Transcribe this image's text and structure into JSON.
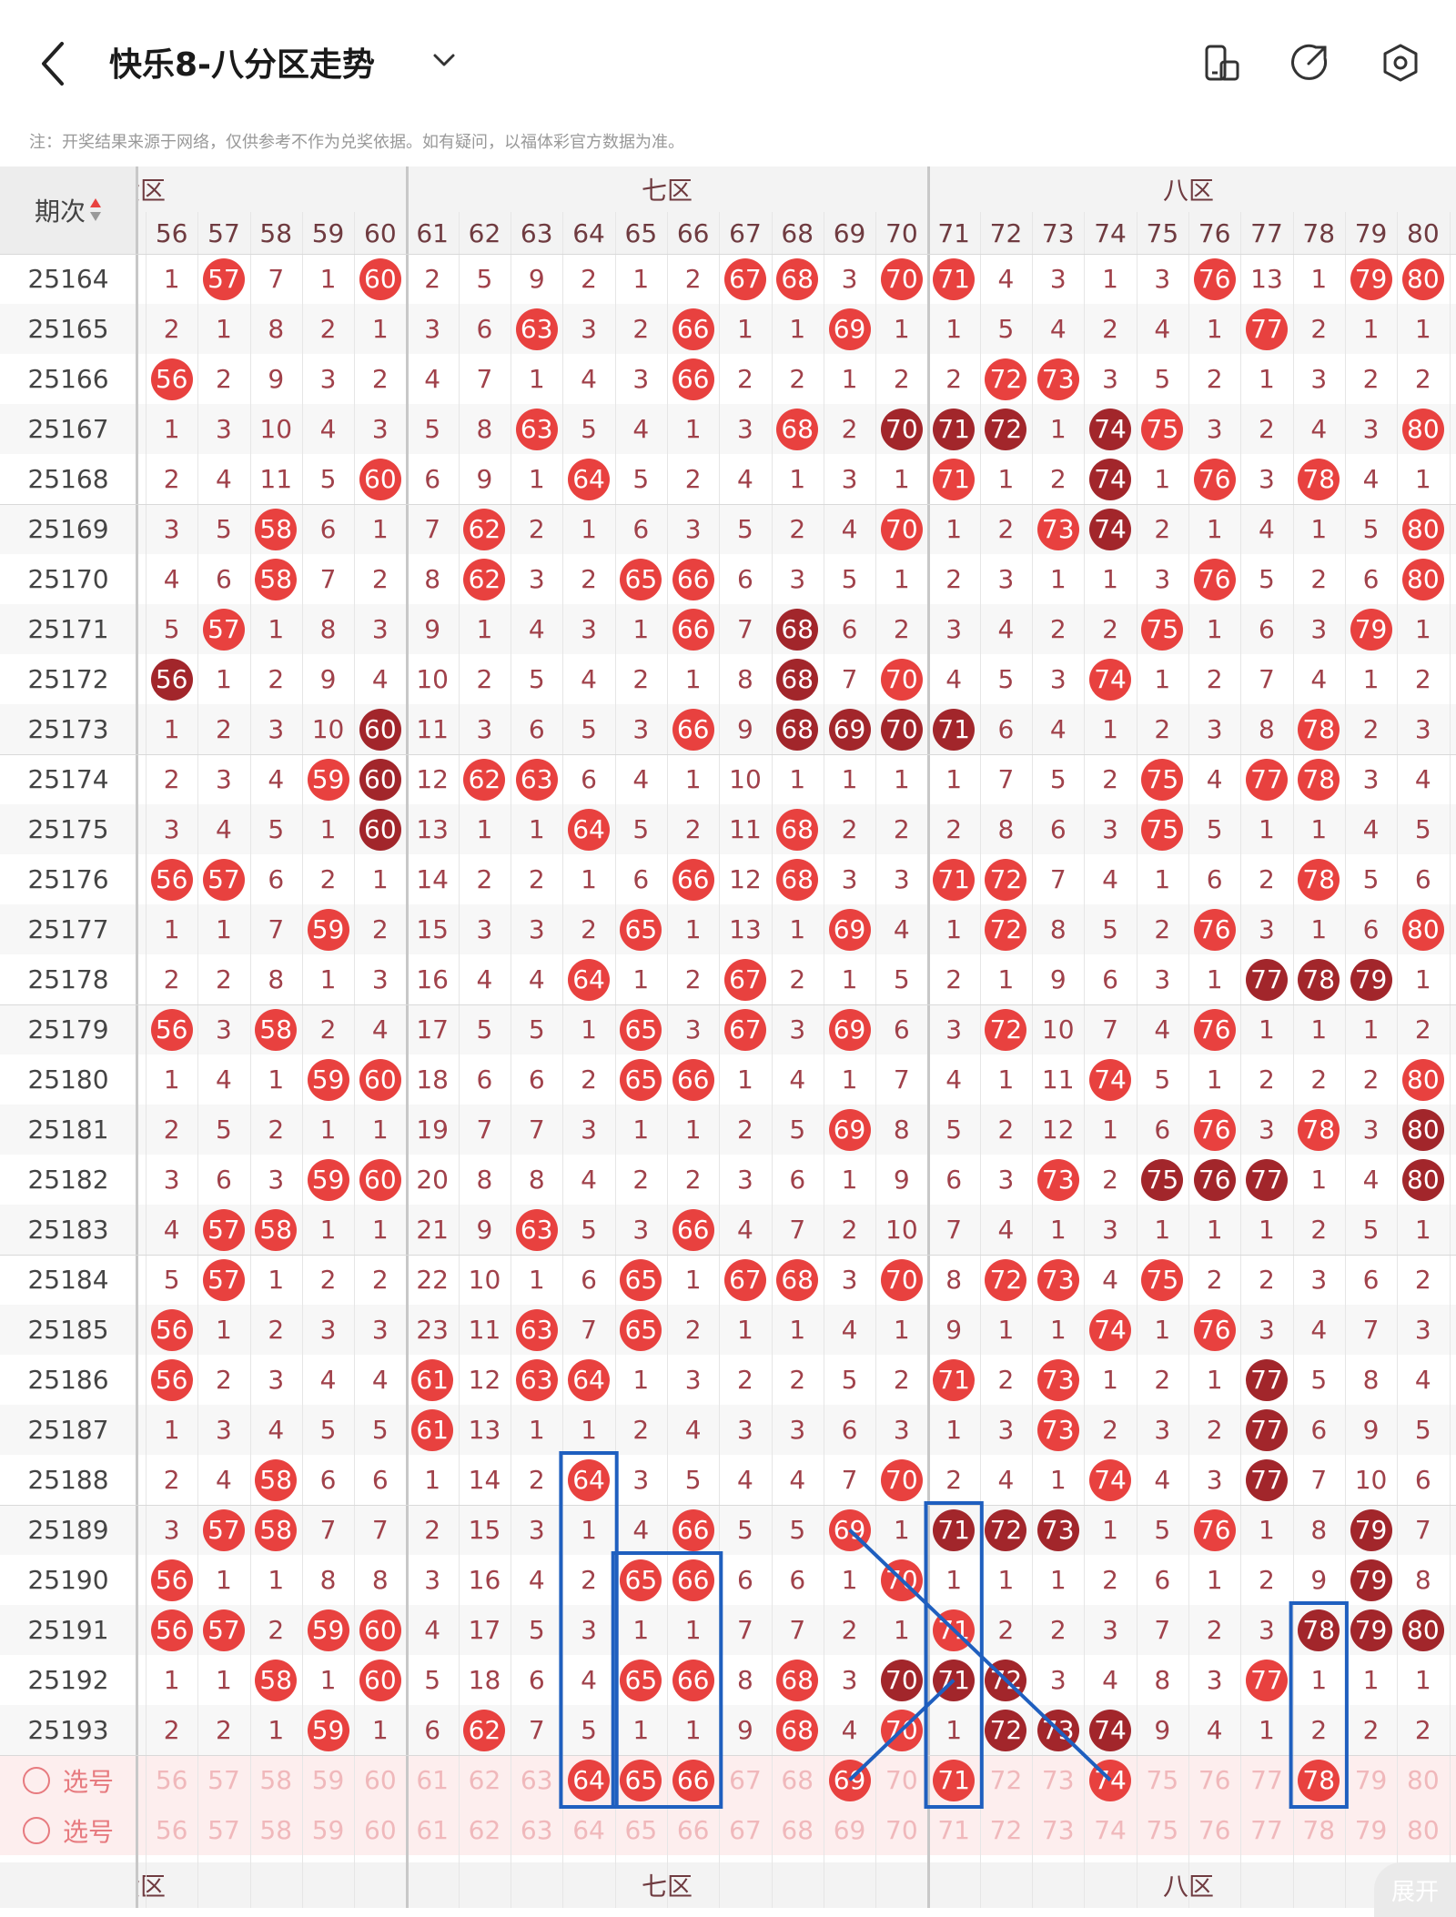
{
  "header": {
    "title": "快乐8-八分区走势",
    "notice": "注：开奖结果来源于网络，仅供参考不作为兑奖依据。如有疑问，以福体彩官方数据为准。"
  },
  "table": {
    "issue_header": "期次",
    "zones": [
      {
        "label": "六区",
        "from": 56,
        "to": 60,
        "partial": true
      },
      {
        "label": "七区",
        "from": 61,
        "to": 70
      },
      {
        "label": "八区",
        "from": 71,
        "to": 80
      }
    ],
    "columns": [
      56,
      57,
      58,
      59,
      60,
      61,
      62,
      63,
      64,
      65,
      66,
      67,
      68,
      69,
      70,
      71,
      72,
      73,
      74,
      75,
      76,
      77,
      78,
      79,
      80
    ],
    "rows": [
      {
        "issue": "25164",
        "cells": [
          1,
          57,
          7,
          1,
          60,
          2,
          5,
          9,
          2,
          1,
          2,
          67,
          68,
          3,
          70,
          71,
          4,
          3,
          1,
          3,
          76,
          13,
          1,
          79,
          80
        ],
        "dark": []
      },
      {
        "issue": "25165",
        "cells": [
          2,
          1,
          8,
          2,
          1,
          3,
          6,
          63,
          3,
          2,
          66,
          1,
          1,
          69,
          1,
          1,
          5,
          4,
          2,
          4,
          1,
          77,
          2,
          1,
          1
        ],
        "dark": []
      },
      {
        "issue": "25166",
        "cells": [
          56,
          2,
          9,
          3,
          2,
          4,
          7,
          1,
          4,
          3,
          66,
          2,
          2,
          1,
          2,
          2,
          72,
          73,
          3,
          5,
          2,
          1,
          3,
          2,
          2
        ],
        "dark": []
      },
      {
        "issue": "25167",
        "cells": [
          1,
          3,
          10,
          4,
          3,
          5,
          8,
          63,
          5,
          4,
          1,
          3,
          68,
          2,
          70,
          71,
          72,
          1,
          74,
          75,
          3,
          2,
          4,
          3,
          80
        ],
        "dark": [
          70,
          71,
          72,
          74
        ]
      },
      {
        "issue": "25168",
        "cells": [
          2,
          4,
          11,
          5,
          60,
          6,
          9,
          1,
          64,
          5,
          2,
          4,
          1,
          3,
          1,
          71,
          1,
          2,
          74,
          1,
          76,
          3,
          78,
          4,
          1
        ],
        "dark": [
          74
        ]
      },
      {
        "issue": "25169",
        "cells": [
          3,
          5,
          58,
          6,
          1,
          7,
          62,
          2,
          1,
          6,
          3,
          5,
          2,
          4,
          70,
          1,
          2,
          73,
          74,
          2,
          1,
          4,
          1,
          5,
          80
        ],
        "dark": [
          74
        ]
      },
      {
        "issue": "25170",
        "cells": [
          4,
          6,
          58,
          7,
          2,
          8,
          62,
          3,
          2,
          65,
          66,
          6,
          3,
          5,
          1,
          2,
          3,
          1,
          1,
          3,
          76,
          5,
          2,
          6,
          80
        ],
        "dark": []
      },
      {
        "issue": "25171",
        "cells": [
          5,
          57,
          1,
          8,
          3,
          9,
          1,
          4,
          3,
          1,
          66,
          7,
          68,
          6,
          2,
          3,
          4,
          2,
          2,
          75,
          1,
          6,
          3,
          79,
          1
        ],
        "dark": [
          68
        ]
      },
      {
        "issue": "25172",
        "cells": [
          56,
          1,
          2,
          9,
          4,
          10,
          2,
          5,
          4,
          2,
          1,
          8,
          68,
          7,
          70,
          4,
          5,
          3,
          74,
          1,
          2,
          7,
          4,
          1,
          2
        ],
        "dark": [
          56,
          68
        ]
      },
      {
        "issue": "25173",
        "cells": [
          1,
          2,
          3,
          10,
          60,
          11,
          3,
          6,
          5,
          3,
          66,
          9,
          68,
          69,
          70,
          71,
          6,
          4,
          1,
          2,
          3,
          8,
          78,
          2,
          3
        ],
        "dark": [
          60,
          68,
          69,
          70,
          71
        ]
      },
      {
        "issue": "25174",
        "cells": [
          2,
          3,
          4,
          59,
          60,
          12,
          62,
          63,
          6,
          4,
          1,
          10,
          1,
          1,
          1,
          1,
          7,
          5,
          2,
          75,
          4,
          77,
          78,
          3,
          4
        ],
        "dark": [
          60
        ]
      },
      {
        "issue": "25175",
        "cells": [
          3,
          4,
          5,
          1,
          60,
          13,
          1,
          1,
          64,
          5,
          2,
          11,
          68,
          2,
          2,
          2,
          8,
          6,
          3,
          75,
          5,
          1,
          1,
          4,
          5
        ],
        "dark": [
          60
        ]
      },
      {
        "issue": "25176",
        "cells": [
          56,
          57,
          6,
          2,
          1,
          14,
          2,
          2,
          1,
          6,
          66,
          12,
          68,
          3,
          3,
          71,
          72,
          7,
          4,
          1,
          6,
          2,
          78,
          5,
          6
        ],
        "dark": []
      },
      {
        "issue": "25177",
        "cells": [
          1,
          1,
          7,
          59,
          2,
          15,
          3,
          3,
          2,
          65,
          1,
          13,
          1,
          69,
          4,
          1,
          72,
          8,
          5,
          2,
          76,
          3,
          1,
          6,
          80
        ],
        "dark": []
      },
      {
        "issue": "25178",
        "cells": [
          2,
          2,
          8,
          1,
          3,
          16,
          4,
          4,
          64,
          1,
          2,
          67,
          2,
          1,
          5,
          2,
          1,
          9,
          6,
          3,
          1,
          77,
          78,
          79,
          1
        ],
        "dark": [
          77,
          78,
          79
        ]
      },
      {
        "issue": "25179",
        "cells": [
          56,
          3,
          58,
          2,
          4,
          17,
          5,
          5,
          1,
          65,
          3,
          67,
          3,
          69,
          6,
          3,
          72,
          10,
          7,
          4,
          76,
          1,
          1,
          1,
          2
        ],
        "dark": []
      },
      {
        "issue": "25180",
        "cells": [
          1,
          4,
          1,
          59,
          60,
          18,
          6,
          6,
          2,
          65,
          66,
          1,
          4,
          1,
          7,
          4,
          1,
          11,
          74,
          5,
          1,
          2,
          2,
          2,
          80
        ],
        "dark": []
      },
      {
        "issue": "25181",
        "cells": [
          2,
          5,
          2,
          1,
          1,
          19,
          7,
          7,
          3,
          1,
          1,
          2,
          5,
          69,
          8,
          5,
          2,
          12,
          1,
          6,
          76,
          3,
          78,
          3,
          80
        ],
        "dark": [
          80
        ]
      },
      {
        "issue": "25182",
        "cells": [
          3,
          6,
          3,
          59,
          60,
          20,
          8,
          8,
          4,
          2,
          2,
          3,
          6,
          1,
          9,
          6,
          3,
          73,
          2,
          75,
          76,
          77,
          1,
          4,
          80
        ],
        "dark": [
          75,
          76,
          77,
          80
        ]
      },
      {
        "issue": "25183",
        "cells": [
          4,
          57,
          58,
          1,
          1,
          21,
          9,
          63,
          5,
          3,
          66,
          4,
          7,
          2,
          10,
          7,
          4,
          1,
          3,
          1,
          1,
          1,
          2,
          5,
          1
        ],
        "dark": []
      },
      {
        "issue": "25184",
        "cells": [
          5,
          57,
          1,
          2,
          2,
          22,
          10,
          1,
          6,
          65,
          1,
          67,
          68,
          3,
          70,
          8,
          72,
          73,
          4,
          75,
          2,
          2,
          3,
          6,
          2
        ],
        "dark": []
      },
      {
        "issue": "25185",
        "cells": [
          56,
          1,
          2,
          3,
          3,
          23,
          11,
          63,
          7,
          65,
          2,
          1,
          1,
          4,
          1,
          9,
          1,
          1,
          74,
          1,
          76,
          3,
          4,
          7,
          3
        ],
        "dark": []
      },
      {
        "issue": "25186",
        "cells": [
          56,
          2,
          3,
          4,
          4,
          61,
          12,
          63,
          64,
          1,
          3,
          2,
          2,
          5,
          2,
          71,
          2,
          73,
          1,
          2,
          1,
          77,
          5,
          8,
          4
        ],
        "dark": [
          77
        ]
      },
      {
        "issue": "25187",
        "cells": [
          1,
          3,
          4,
          5,
          5,
          61,
          13,
          1,
          1,
          2,
          4,
          3,
          3,
          6,
          3,
          1,
          3,
          73,
          2,
          3,
          2,
          77,
          6,
          9,
          5
        ],
        "dark": [
          77
        ]
      },
      {
        "issue": "25188",
        "cells": [
          2,
          4,
          58,
          6,
          6,
          1,
          14,
          2,
          64,
          3,
          5,
          4,
          4,
          7,
          70,
          2,
          4,
          1,
          74,
          4,
          3,
          77,
          7,
          10,
          6
        ],
        "dark": [
          77
        ]
      },
      {
        "issue": "25189",
        "cells": [
          3,
          57,
          58,
          7,
          7,
          2,
          15,
          3,
          1,
          4,
          66,
          5,
          5,
          69,
          1,
          71,
          72,
          73,
          1,
          5,
          76,
          1,
          8,
          79,
          7
        ],
        "dark": [
          71,
          72,
          73,
          79
        ]
      },
      {
        "issue": "25190",
        "cells": [
          56,
          1,
          1,
          8,
          8,
          3,
          16,
          4,
          2,
          65,
          66,
          6,
          6,
          1,
          70,
          1,
          1,
          1,
          2,
          6,
          1,
          2,
          9,
          79,
          8
        ],
        "dark": [
          79
        ]
      },
      {
        "issue": "25191",
        "cells": [
          56,
          57,
          2,
          59,
          60,
          4,
          17,
          5,
          3,
          1,
          1,
          7,
          7,
          2,
          1,
          71,
          2,
          2,
          3,
          7,
          2,
          3,
          78,
          79,
          80
        ],
        "dark": [
          78,
          79,
          80
        ]
      },
      {
        "issue": "25192",
        "cells": [
          1,
          1,
          58,
          1,
          60,
          5,
          18,
          6,
          4,
          65,
          66,
          8,
          68,
          3,
          70,
          71,
          72,
          3,
          4,
          8,
          3,
          77,
          1,
          1,
          1
        ],
        "dark": [
          70,
          71,
          72
        ]
      },
      {
        "issue": "25193",
        "cells": [
          2,
          2,
          1,
          59,
          1,
          6,
          62,
          7,
          5,
          1,
          1,
          9,
          68,
          4,
          70,
          1,
          72,
          73,
          74,
          9,
          4,
          1,
          2,
          2,
          2
        ],
        "dark": [
          72,
          73,
          74
        ]
      }
    ],
    "select_rows": [
      {
        "label": "选号",
        "selected": [
          64,
          65,
          66,
          69,
          71,
          74,
          78
        ]
      },
      {
        "label": "选号",
        "selected": []
      }
    ],
    "expand_label": "展开"
  },
  "colors": {
    "ball_red": "#e8413f",
    "ball_dark": "#a2262b",
    "mark_blue": "#1f5fbf",
    "text": "#a0414a"
  }
}
